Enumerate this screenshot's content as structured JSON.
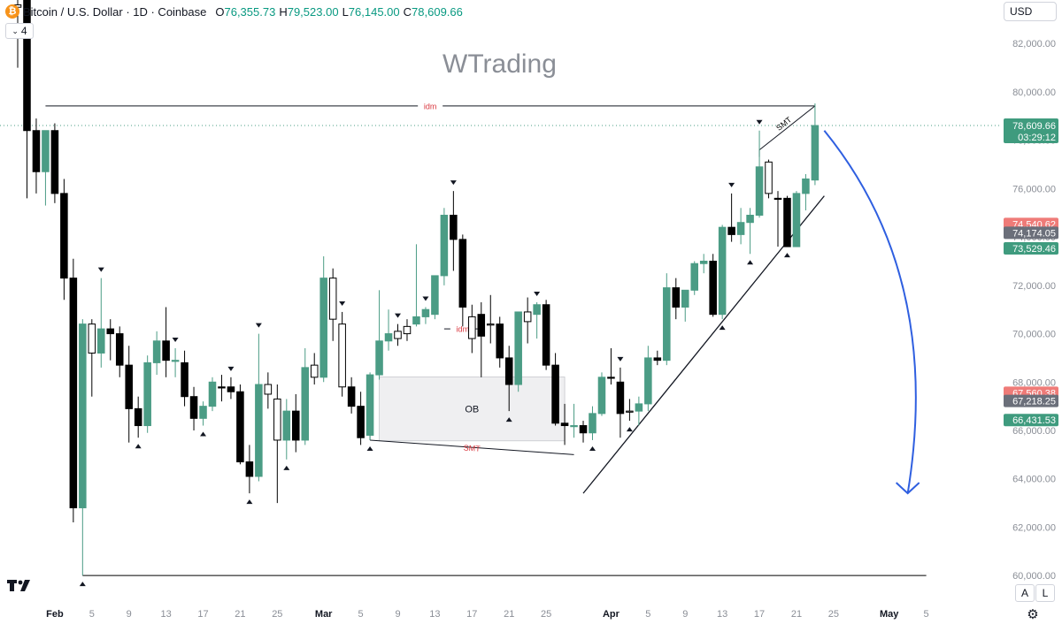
{
  "header": {
    "symbol": "Bitcoin / U.S. Dollar · 1D · Coinbase",
    "coin_glyph": "₿",
    "o_label": "O",
    "o_value": "76,355.73",
    "h_label": "H",
    "h_value": "79,523.00",
    "l_label": "L",
    "l_value": "76,145.00",
    "c_label": "C",
    "c_value": "78,609.66",
    "indicator_count": "4",
    "currency": "USD"
  },
  "watermark": "WTrading",
  "controls": {
    "auto_label": "A",
    "log_label": "L"
  },
  "colors": {
    "up": "#4b9c85",
    "down": "#000000",
    "accent_red": "#d9363e",
    "arrow_blue": "#2f5fe0",
    "badge_red": "#ef7b78",
    "badge_gray": "#6b6f7a",
    "badge_green": "#3f9b7e"
  },
  "chart_data": {
    "type": "candlestick",
    "x_type": "date",
    "xlim": [
      "2024-01-28",
      "2024-05-10"
    ],
    "ylim": [
      58800,
      83800
    ],
    "y_ticks": [
      60000,
      62000,
      64000,
      66000,
      68000,
      70000,
      72000,
      74000,
      76000,
      78000,
      80000,
      82000
    ],
    "y_tick_labels": [
      "60,000.00",
      "62,000.00",
      "64,000.00",
      "66,000.00",
      "68,000.00",
      "70,000.00",
      "72,000.00",
      "74,000.00",
      "76,000.00",
      "78,000.00",
      "80,000.00",
      "82,000.00"
    ],
    "x_ticks": [
      {
        "date": "2024-02-01",
        "label": "Feb"
      },
      {
        "date": "2024-02-05",
        "label": "5"
      },
      {
        "date": "2024-02-09",
        "label": "9"
      },
      {
        "date": "2024-02-13",
        "label": "13"
      },
      {
        "date": "2024-02-17",
        "label": "17"
      },
      {
        "date": "2024-02-21",
        "label": "21"
      },
      {
        "date": "2024-02-25",
        "label": "25"
      },
      {
        "date": "2024-03-01",
        "label": "Mar"
      },
      {
        "date": "2024-03-05",
        "label": "5"
      },
      {
        "date": "2024-03-09",
        "label": "9"
      },
      {
        "date": "2024-03-13",
        "label": "13"
      },
      {
        "date": "2024-03-17",
        "label": "17"
      },
      {
        "date": "2024-03-21",
        "label": "21"
      },
      {
        "date": "2024-03-25",
        "label": "25"
      },
      {
        "date": "2024-04-01",
        "label": "Apr"
      },
      {
        "date": "2024-04-05",
        "label": "5"
      },
      {
        "date": "2024-04-09",
        "label": "9"
      },
      {
        "date": "2024-04-13",
        "label": "13"
      },
      {
        "date": "2024-04-17",
        "label": "17"
      },
      {
        "date": "2024-04-21",
        "label": "21"
      },
      {
        "date": "2024-04-25",
        "label": "25"
      },
      {
        "date": "2024-05-01",
        "label": "May"
      },
      {
        "date": "2024-05-05",
        "label": "5"
      }
    ],
    "candles": [
      {
        "date": "2024-01-28",
        "o": 83500,
        "h": 84200,
        "l": 81000,
        "c": 83600,
        "style": "hollow"
      },
      {
        "date": "2024-01-29",
        "o": 83800,
        "h": 84000,
        "l": 75600,
        "c": 78400,
        "style": "down"
      },
      {
        "date": "2024-01-30",
        "o": 78400,
        "h": 78900,
        "l": 75800,
        "c": 76700,
        "style": "down"
      },
      {
        "date": "2024-01-31",
        "o": 76700,
        "h": 78400,
        "l": 75300,
        "c": 78400,
        "style": "up"
      },
      {
        "date": "2024-02-01",
        "o": 78400,
        "h": 78700,
        "l": 75400,
        "c": 75800,
        "style": "down"
      },
      {
        "date": "2024-02-02",
        "o": 75800,
        "h": 76400,
        "l": 71400,
        "c": 72300,
        "style": "down"
      },
      {
        "date": "2024-02-03",
        "o": 72300,
        "h": 73100,
        "l": 62200,
        "c": 62800,
        "style": "down"
      },
      {
        "date": "2024-02-04",
        "o": 62800,
        "h": 70600,
        "l": 60000,
        "c": 70400,
        "style": "up"
      },
      {
        "date": "2024-02-05",
        "o": 69200,
        "h": 70600,
        "l": 67400,
        "c": 70400,
        "style": "hollow"
      },
      {
        "date": "2024-02-06",
        "o": 69200,
        "h": 72300,
        "l": 68600,
        "c": 70200,
        "style": "up"
      },
      {
        "date": "2024-02-07",
        "o": 70200,
        "h": 70600,
        "l": 68900,
        "c": 70000,
        "style": "down"
      },
      {
        "date": "2024-02-08",
        "o": 70000,
        "h": 70300,
        "l": 68200,
        "c": 68700,
        "style": "down"
      },
      {
        "date": "2024-02-09",
        "o": 68700,
        "h": 69500,
        "l": 65500,
        "c": 66900,
        "style": "down"
      },
      {
        "date": "2024-02-10",
        "o": 66900,
        "h": 67400,
        "l": 65700,
        "c": 66200,
        "style": "down"
      },
      {
        "date": "2024-02-11",
        "o": 66200,
        "h": 69100,
        "l": 65900,
        "c": 68800,
        "style": "up"
      },
      {
        "date": "2024-02-12",
        "o": 68800,
        "h": 70100,
        "l": 68300,
        "c": 69700,
        "style": "up"
      },
      {
        "date": "2024-02-13",
        "o": 69700,
        "h": 71100,
        "l": 68200,
        "c": 68900,
        "style": "down"
      },
      {
        "date": "2024-02-14",
        "o": 68900,
        "h": 69400,
        "l": 68200,
        "c": 68900,
        "style": "up"
      },
      {
        "date": "2024-02-15",
        "o": 68800,
        "h": 69300,
        "l": 67000,
        "c": 67400,
        "style": "down"
      },
      {
        "date": "2024-02-16",
        "o": 67400,
        "h": 67800,
        "l": 66000,
        "c": 66500,
        "style": "down"
      },
      {
        "date": "2024-02-17",
        "o": 66500,
        "h": 67200,
        "l": 66200,
        "c": 67000,
        "style": "up"
      },
      {
        "date": "2024-02-18",
        "o": 67000,
        "h": 68200,
        "l": 66800,
        "c": 68000,
        "style": "up"
      },
      {
        "date": "2024-02-19",
        "o": 67800,
        "h": 68300,
        "l": 67200,
        "c": 67800,
        "style": "down"
      },
      {
        "date": "2024-02-20",
        "o": 67800,
        "h": 68200,
        "l": 67300,
        "c": 67600,
        "style": "down"
      },
      {
        "date": "2024-02-21",
        "o": 67600,
        "h": 67900,
        "l": 64600,
        "c": 64700,
        "style": "down"
      },
      {
        "date": "2024-02-22",
        "o": 64700,
        "h": 65400,
        "l": 63400,
        "c": 64100,
        "style": "down"
      },
      {
        "date": "2024-02-23",
        "o": 64100,
        "h": 70000,
        "l": 63900,
        "c": 67900,
        "style": "up"
      },
      {
        "date": "2024-02-24",
        "o": 67500,
        "h": 68400,
        "l": 66900,
        "c": 67900,
        "style": "hollow"
      },
      {
        "date": "2024-02-25",
        "o": 67300,
        "h": 67900,
        "l": 63000,
        "c": 65600,
        "style": "hollow"
      },
      {
        "date": "2024-02-26",
        "o": 65600,
        "h": 67300,
        "l": 64800,
        "c": 66800,
        "style": "up"
      },
      {
        "date": "2024-02-27",
        "o": 66800,
        "h": 67500,
        "l": 65100,
        "c": 65600,
        "style": "down"
      },
      {
        "date": "2024-02-28",
        "o": 65600,
        "h": 69400,
        "l": 65400,
        "c": 68600,
        "style": "up"
      },
      {
        "date": "2024-02-29",
        "o": 68200,
        "h": 69200,
        "l": 67900,
        "c": 68700,
        "style": "hollow"
      },
      {
        "date": "2024-03-01",
        "o": 68200,
        "h": 73200,
        "l": 68000,
        "c": 72300,
        "style": "up"
      },
      {
        "date": "2024-03-02",
        "o": 70600,
        "h": 72700,
        "l": 69700,
        "c": 72300,
        "style": "hollow"
      },
      {
        "date": "2024-03-03",
        "o": 70400,
        "h": 70900,
        "l": 67400,
        "c": 67800,
        "style": "hollow"
      },
      {
        "date": "2024-03-04",
        "o": 67800,
        "h": 68200,
        "l": 66700,
        "c": 67000,
        "style": "down"
      },
      {
        "date": "2024-03-05",
        "o": 67000,
        "h": 67600,
        "l": 65400,
        "c": 65700,
        "style": "down"
      },
      {
        "date": "2024-03-06",
        "o": 65800,
        "h": 68400,
        "l": 65600,
        "c": 68300,
        "style": "up"
      },
      {
        "date": "2024-03-07",
        "o": 68300,
        "h": 71800,
        "l": 68100,
        "c": 69700,
        "style": "up"
      },
      {
        "date": "2024-03-08",
        "o": 69700,
        "h": 71000,
        "l": 69300,
        "c": 70000,
        "style": "up"
      },
      {
        "date": "2024-03-09",
        "o": 69800,
        "h": 70400,
        "l": 69500,
        "c": 70100,
        "style": "hollow"
      },
      {
        "date": "2024-03-10",
        "o": 70000,
        "h": 70600,
        "l": 69700,
        "c": 70300,
        "style": "hollow"
      },
      {
        "date": "2024-03-11",
        "o": 70400,
        "h": 73700,
        "l": 70300,
        "c": 70700,
        "style": "up"
      },
      {
        "date": "2024-03-12",
        "o": 70700,
        "h": 71100,
        "l": 70400,
        "c": 71000,
        "style": "up"
      },
      {
        "date": "2024-03-13",
        "o": 70800,
        "h": 72400,
        "l": 70600,
        "c": 72400,
        "style": "up"
      },
      {
        "date": "2024-03-14",
        "o": 72400,
        "h": 75200,
        "l": 72000,
        "c": 74900,
        "style": "up"
      },
      {
        "date": "2024-03-15",
        "o": 74900,
        "h": 75900,
        "l": 72600,
        "c": 73900,
        "style": "down"
      },
      {
        "date": "2024-03-16",
        "o": 73900,
        "h": 74100,
        "l": 70300,
        "c": 71100,
        "style": "down"
      },
      {
        "date": "2024-03-17",
        "o": 70700,
        "h": 71200,
        "l": 69200,
        "c": 69800,
        "style": "hollow"
      },
      {
        "date": "2024-03-18",
        "o": 70800,
        "h": 71300,
        "l": 68200,
        "c": 69900,
        "style": "down"
      },
      {
        "date": "2024-03-19",
        "o": 70400,
        "h": 71600,
        "l": 69600,
        "c": 70400,
        "style": "hollow"
      },
      {
        "date": "2024-03-20",
        "o": 70400,
        "h": 70700,
        "l": 68600,
        "c": 69000,
        "style": "down"
      },
      {
        "date": "2024-03-21",
        "o": 69000,
        "h": 69500,
        "l": 66800,
        "c": 67900,
        "style": "down"
      },
      {
        "date": "2024-03-22",
        "o": 67900,
        "h": 70900,
        "l": 67600,
        "c": 70900,
        "style": "up"
      },
      {
        "date": "2024-03-23",
        "o": 70500,
        "h": 71500,
        "l": 69600,
        "c": 70900,
        "style": "hollow"
      },
      {
        "date": "2024-03-24",
        "o": 70800,
        "h": 71300,
        "l": 69800,
        "c": 71200,
        "style": "up"
      },
      {
        "date": "2024-03-25",
        "o": 71200,
        "h": 71400,
        "l": 68500,
        "c": 68700,
        "style": "down"
      },
      {
        "date": "2024-03-26",
        "o": 68700,
        "h": 69200,
        "l": 66200,
        "c": 66300,
        "style": "down"
      },
      {
        "date": "2024-03-27",
        "o": 66300,
        "h": 67100,
        "l": 65400,
        "c": 66200,
        "style": "down"
      },
      {
        "date": "2024-03-28",
        "o": 66200,
        "h": 67100,
        "l": 65700,
        "c": 66200,
        "style": "up"
      },
      {
        "date": "2024-03-29",
        "o": 66200,
        "h": 66400,
        "l": 65500,
        "c": 65900,
        "style": "down"
      },
      {
        "date": "2024-03-30",
        "o": 65900,
        "h": 67000,
        "l": 65600,
        "c": 66700,
        "style": "up"
      },
      {
        "date": "2024-03-31",
        "o": 66700,
        "h": 68400,
        "l": 66600,
        "c": 68200,
        "style": "up"
      },
      {
        "date": "2024-04-01",
        "o": 68200,
        "h": 69400,
        "l": 67900,
        "c": 68200,
        "style": "down"
      },
      {
        "date": "2024-04-02",
        "o": 68000,
        "h": 68600,
        "l": 65700,
        "c": 66700,
        "style": "down"
      },
      {
        "date": "2024-04-03",
        "o": 66800,
        "h": 67300,
        "l": 66400,
        "c": 66800,
        "style": "hollow"
      },
      {
        "date": "2024-04-04",
        "o": 66800,
        "h": 67400,
        "l": 66200,
        "c": 67100,
        "style": "up"
      },
      {
        "date": "2024-04-05",
        "o": 67100,
        "h": 69500,
        "l": 66800,
        "c": 69000,
        "style": "up"
      },
      {
        "date": "2024-04-06",
        "o": 69000,
        "h": 69300,
        "l": 68700,
        "c": 68900,
        "style": "down"
      },
      {
        "date": "2024-04-07",
        "o": 68900,
        "h": 72500,
        "l": 68700,
        "c": 71900,
        "style": "up"
      },
      {
        "date": "2024-04-08",
        "o": 71900,
        "h": 72300,
        "l": 70600,
        "c": 71100,
        "style": "down"
      },
      {
        "date": "2024-04-09",
        "o": 71100,
        "h": 71700,
        "l": 70500,
        "c": 71800,
        "style": "up"
      },
      {
        "date": "2024-04-10",
        "o": 71800,
        "h": 73000,
        "l": 71600,
        "c": 72900,
        "style": "up"
      },
      {
        "date": "2024-04-11",
        "o": 72900,
        "h": 73300,
        "l": 72500,
        "c": 73000,
        "style": "up"
      },
      {
        "date": "2024-04-12",
        "o": 73000,
        "h": 73300,
        "l": 70700,
        "c": 70800,
        "style": "down"
      },
      {
        "date": "2024-04-13",
        "o": 70800,
        "h": 74500,
        "l": 70600,
        "c": 74400,
        "style": "up"
      },
      {
        "date": "2024-04-14",
        "o": 74400,
        "h": 75800,
        "l": 73800,
        "c": 74100,
        "style": "down"
      },
      {
        "date": "2024-04-15",
        "o": 74100,
        "h": 75200,
        "l": 73700,
        "c": 74600,
        "style": "up"
      },
      {
        "date": "2024-04-16",
        "o": 74600,
        "h": 75200,
        "l": 73300,
        "c": 74900,
        "style": "up"
      },
      {
        "date": "2024-04-17",
        "o": 74900,
        "h": 78400,
        "l": 74800,
        "c": 76900,
        "style": "up"
      },
      {
        "date": "2024-04-18",
        "o": 75800,
        "h": 77200,
        "l": 75600,
        "c": 77100,
        "style": "hollow"
      },
      {
        "date": "2024-04-19",
        "o": 75600,
        "h": 75900,
        "l": 73600,
        "c": 75600,
        "style": "down"
      },
      {
        "date": "2024-04-20",
        "o": 75600,
        "h": 75700,
        "l": 73600,
        "c": 73600,
        "style": "down"
      },
      {
        "date": "2024-04-21",
        "o": 73600,
        "h": 75900,
        "l": 73700,
        "c": 75800,
        "style": "up"
      },
      {
        "date": "2024-04-22",
        "o": 75800,
        "h": 76600,
        "l": 75100,
        "c": 76400,
        "style": "up"
      },
      {
        "date": "2024-04-23",
        "o": 76355.73,
        "h": 79523,
        "l": 76145,
        "c": 78609.66,
        "style": "up"
      }
    ],
    "swing_highs": [
      "2024-02-06",
      "2024-02-14",
      "2024-02-20",
      "2024-02-23",
      "2024-03-03",
      "2024-03-09",
      "2024-03-12",
      "2024-03-15",
      "2024-03-24",
      "2024-04-02",
      "2024-04-14",
      "2024-04-17"
    ],
    "swing_lows": [
      "2024-02-04",
      "2024-02-10",
      "2024-02-17",
      "2024-02-22",
      "2024-02-26",
      "2024-03-06",
      "2024-03-21",
      "2024-03-30",
      "2024-04-03",
      "2024-04-13",
      "2024-04-16",
      "2024-04-20"
    ],
    "levels": [
      {
        "from": "2024-01-31",
        "to": "2024-04-23",
        "y": 79420,
        "label": "idm",
        "color": "#d9363e"
      },
      {
        "from": "2024-03-14",
        "to": "2024-03-18",
        "y": 70200,
        "label": "idm",
        "color": "#d9363e"
      },
      {
        "from": "2024-02-04",
        "to": "2024-05-05",
        "y": 60000,
        "label": "",
        "color": "#000000"
      }
    ],
    "zones": [
      {
        "from": "2024-03-07",
        "to": "2024-03-27",
        "y0": 65570,
        "y1": 68210,
        "label": "OB"
      }
    ],
    "smt_lines": [
      {
        "from": {
          "date": "2024-03-06",
          "y": 65600
        },
        "to": {
          "date": "2024-03-28",
          "y": 65000
        },
        "label": "SMT",
        "color": "#d9363e"
      },
      {
        "from": {
          "date": "2024-04-17",
          "y": 77600
        },
        "to": {
          "date": "2024-04-23",
          "y": 79420
        },
        "label": "SMT",
        "color": "#000000"
      }
    ],
    "trendline": {
      "from": {
        "date": "2024-03-29",
        "y": 63400
      },
      "to": {
        "date": "2024-04-24",
        "y": 75700
      }
    },
    "arrow": {
      "from": {
        "date": "2024-04-24",
        "y": 78400
      },
      "to": {
        "date": "2024-05-03",
        "y": 63400
      },
      "color": "#2f5fe0"
    },
    "current_price": {
      "value": 78609.66,
      "label": "78,609.66",
      "countdown": "03:29:12"
    },
    "price_badges": [
      {
        "value": 74540.62,
        "label": "74,540.62",
        "color": "#ef7b78"
      },
      {
        "value": 74174.05,
        "label": "74,174.05",
        "color": "#6b6f7a"
      },
      {
        "value": 73529.46,
        "label": "73,529.46",
        "color": "#3f9b7e"
      },
      {
        "value": 67560.38,
        "label": "67,560.38",
        "color": "#ef7b78"
      },
      {
        "value": 67218.25,
        "label": "67,218.25",
        "color": "#6b6f7a"
      },
      {
        "value": 66431.53,
        "label": "66,431.53",
        "color": "#3f9b7e"
      }
    ]
  }
}
